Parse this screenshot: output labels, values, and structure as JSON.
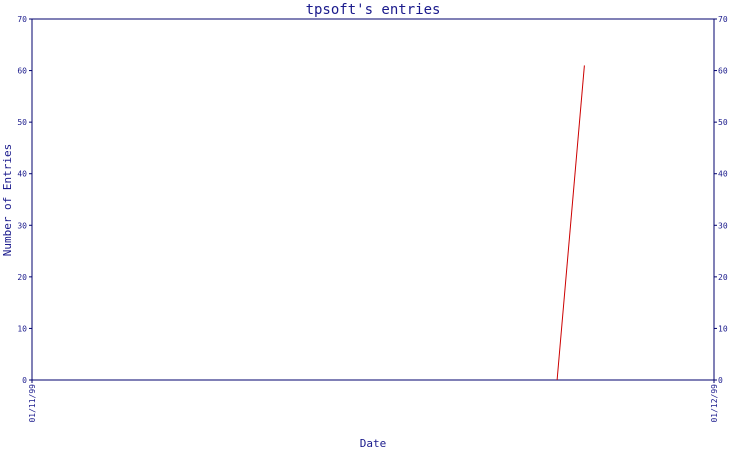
{
  "chart_data": {
    "type": "line",
    "title": "tpsoft's entries",
    "xlabel": "Date",
    "ylabel": "Number of Entries",
    "x_ticks": [
      "01/11/99",
      "01/12/99"
    ],
    "y_ticks": [
      0,
      10,
      20,
      30,
      40,
      50,
      60,
      70
    ],
    "ylim": [
      0,
      70
    ],
    "xlim": [
      0,
      1
    ],
    "grid": false,
    "series": [
      {
        "color": "#cc0000",
        "x": [
          0.77,
          0.81
        ],
        "values": [
          0,
          61
        ]
      }
    ]
  }
}
